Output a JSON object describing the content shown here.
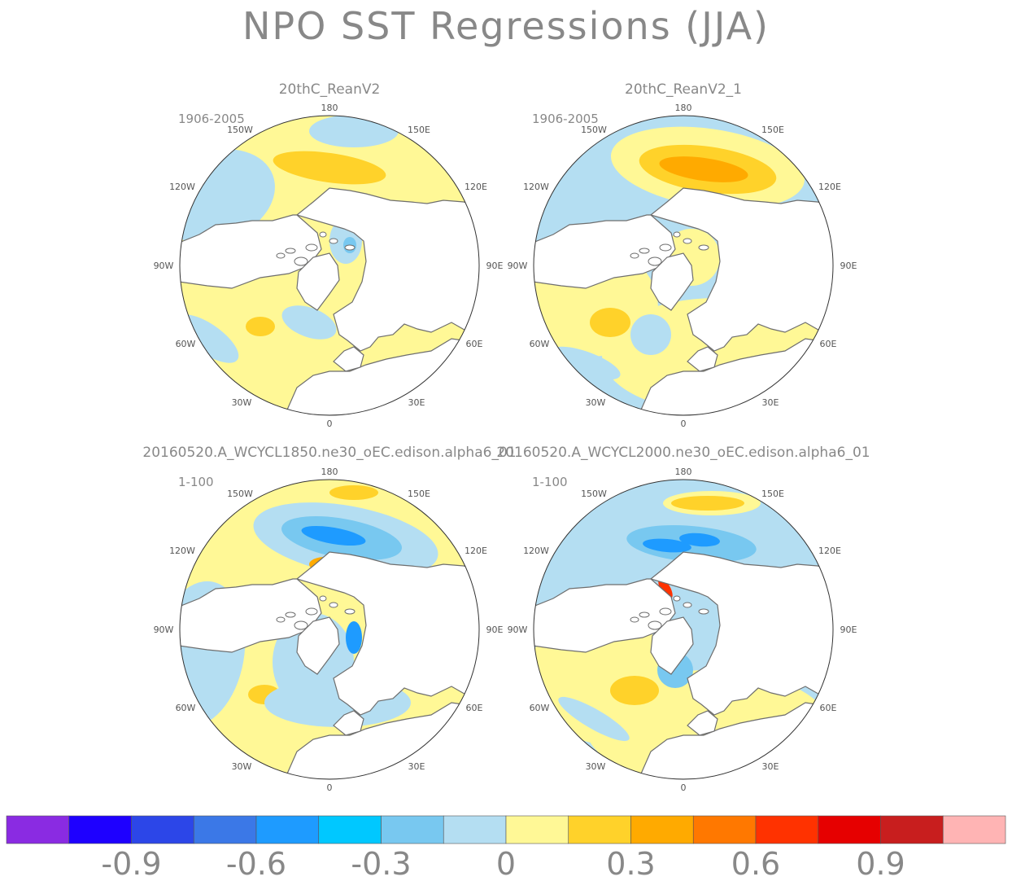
{
  "title": "NPO SST Regressions (JJA)",
  "panels": [
    {
      "name": "20thC_ReanV2",
      "period": "1906-2005",
      "theme": "reanalysis-weak"
    },
    {
      "name": "20thC_ReanV2_1",
      "period": "1906-2005",
      "theme": "reanalysis-strong"
    },
    {
      "name": "20160520.A_WCYCL1850.ne30_oEC.edison.alpha6_01",
      "period": "1-100",
      "theme": "model-1850"
    },
    {
      "name": "20160520.A_WCYCL2000.ne30_oEC.edison.alpha6_01",
      "period": "1-100",
      "theme": "model-2000"
    }
  ],
  "lon_labels": {
    "180": "180",
    "150E": "150E",
    "120E": "120E",
    "90E": "90E",
    "60E": "60E",
    "30E": "30E",
    "0": "0",
    "30W": "30W",
    "60W": "60W",
    "90W": "90W",
    "120W": "120W",
    "150W": "150W"
  },
  "colorbar": {
    "colors": [
      "#8a2be2",
      "#1e00ff",
      "#2c46e8",
      "#3b78e7",
      "#1e9bff",
      "#00c8ff",
      "#78c8f0",
      "#b4def2",
      "#fff896",
      "#ffd22a",
      "#ffaa00",
      "#ff7800",
      "#ff3200",
      "#e60000",
      "#c81e1e",
      "#ffb4b4"
    ],
    "labels": [
      "-0.9",
      "-0.6",
      "-0.3",
      "0",
      "0.3",
      "0.6",
      "0.9"
    ],
    "label_values": [
      -0.9,
      -0.6,
      -0.3,
      0,
      0.3,
      0.6,
      0.9
    ]
  },
  "palette": {
    "land": "#ffffff",
    "coast": "#6e6e6e",
    "rim": "#333333",
    "neg_weak": "#b4def2",
    "neg_mid": "#78c8f0",
    "neg_strong": "#1e9bff",
    "neg_x": "#3b78e7",
    "pos_weak": "#fff896",
    "pos_mid": "#ffd22a",
    "pos_strong": "#ffaa00",
    "pos_x": "#ff7800",
    "pos_xx": "#ff3200"
  }
}
